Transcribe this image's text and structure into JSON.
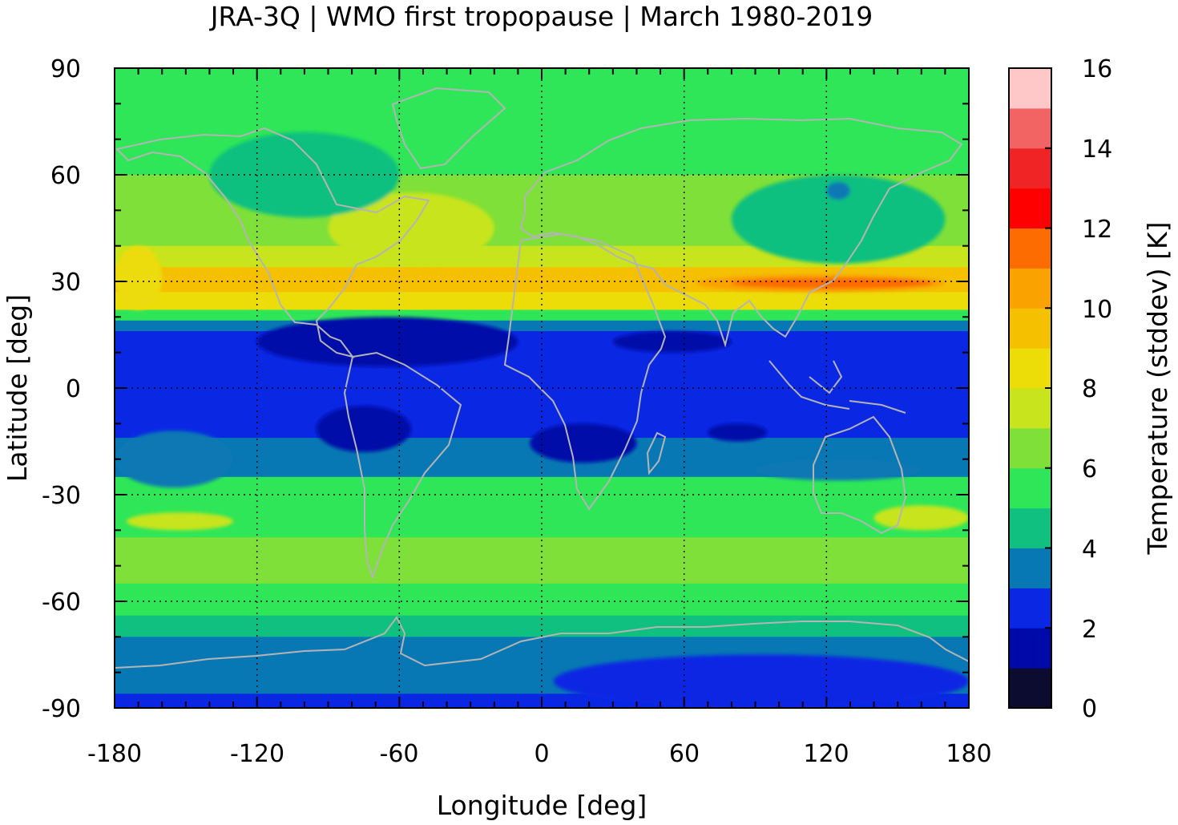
{
  "title": "JRA-3Q | WMO first tropopause | March 1980-2019",
  "xlabel": "Longitude [deg]",
  "ylabel": "Latitude [deg]",
  "x_ticks": [
    "-180",
    "-120",
    "-60",
    "0",
    "60",
    "120",
    "180"
  ],
  "y_ticks": [
    "90",
    "60",
    "30",
    "0",
    "-30",
    "-60",
    "-90"
  ],
  "colorbar": {
    "label": "Temperature (stddev) [K]",
    "ticks": [
      "16",
      "14",
      "12",
      "10",
      "8",
      "6",
      "4",
      "2",
      "0"
    ],
    "range": [
      0,
      16
    ],
    "levels": [
      {
        "from": 0,
        "to": 1,
        "color": "#0c0c30"
      },
      {
        "from": 1,
        "to": 2,
        "color": "#000aa8"
      },
      {
        "from": 2,
        "to": 3,
        "color": "#0a28e4"
      },
      {
        "from": 3,
        "to": 4,
        "color": "#0878b4"
      },
      {
        "from": 4,
        "to": 5,
        "color": "#10c080"
      },
      {
        "from": 5,
        "to": 6,
        "color": "#2ee658"
      },
      {
        "from": 6,
        "to": 7,
        "color": "#7ee038"
      },
      {
        "from": 7,
        "to": 8,
        "color": "#c8e41c"
      },
      {
        "from": 8,
        "to": 9,
        "color": "#ecdc08"
      },
      {
        "from": 9,
        "to": 10,
        "color": "#f4c000"
      },
      {
        "from": 10,
        "to": 11,
        "color": "#faa200"
      },
      {
        "from": 11,
        "to": 12,
        "color": "#fc6c00"
      },
      {
        "from": 12,
        "to": 13,
        "color": "#ff0000"
      },
      {
        "from": 13,
        "to": 14,
        "color": "#f02424"
      },
      {
        "from": 14,
        "to": 15,
        "color": "#f26464"
      },
      {
        "from": 15,
        "to": 16,
        "color": "#ffc8c8"
      }
    ]
  },
  "chart_data": {
    "type": "heatmap",
    "title": "JRA-3Q | WMO first tropopause | March 1980-2019",
    "xlabel": "Longitude [deg]",
    "ylabel": "Latitude [deg]",
    "xlim": [
      -180,
      180
    ],
    "ylim": [
      -90,
      90
    ],
    "grid": true,
    "colorbar_label": "Temperature (stddev) [K]",
    "zonal_bands": [
      {
        "lat_from": 90,
        "lat_to": 68,
        "value": 5.5
      },
      {
        "lat_from": 68,
        "lat_to": 60,
        "value": 5
      },
      {
        "lat_from": 60,
        "lat_to": 50,
        "value": 6
      },
      {
        "lat_from": 50,
        "lat_to": 40,
        "value": 6.5
      },
      {
        "lat_from": 40,
        "lat_to": 34,
        "value": 7.5
      },
      {
        "lat_from": 34,
        "lat_to": 27,
        "value": 9.5
      },
      {
        "lat_from": 27,
        "lat_to": 22,
        "value": 8
      },
      {
        "lat_from": 22,
        "lat_to": 19,
        "value": 5
      },
      {
        "lat_from": 19,
        "lat_to": 16,
        "value": 3.5
      },
      {
        "lat_from": 16,
        "lat_to": -14,
        "value": 2.5
      },
      {
        "lat_from": -14,
        "lat_to": -25,
        "value": 3.5
      },
      {
        "lat_from": -25,
        "lat_to": -30,
        "value": 5
      },
      {
        "lat_from": -30,
        "lat_to": -42,
        "value": 5.5
      },
      {
        "lat_from": -42,
        "lat_to": -55,
        "value": 6.5
      },
      {
        "lat_from": -55,
        "lat_to": -64,
        "value": 5.5
      },
      {
        "lat_from": -64,
        "lat_to": -70,
        "value": 4.5
      },
      {
        "lat_from": -70,
        "lat_to": -86,
        "value": 3.5
      },
      {
        "lat_from": -86,
        "lat_to": -90,
        "value": 2.5
      }
    ],
    "features": [
      {
        "lon": [
          -120,
          -10
        ],
        "lat": [
          20,
          6
        ],
        "value": 1.5
      },
      {
        "lon": [
          30,
          80
        ],
        "lat": [
          16,
          10
        ],
        "value": 1.5
      },
      {
        "lon": [
          -95,
          -55
        ],
        "lat": [
          -5,
          -18
        ],
        "value": 1.5
      },
      {
        "lon": [
          -5,
          40
        ],
        "lat": [
          -10,
          -21
        ],
        "value": 1.5
      },
      {
        "lon": [
          70,
          95
        ],
        "lat": [
          -10,
          -15
        ],
        "value": 1.5
      },
      {
        "lon": [
          -180,
          -130
        ],
        "lat": [
          -12,
          -28
        ],
        "value": 3.5
      },
      {
        "lon": [
          90,
          160
        ],
        "lat": [
          -20,
          -26
        ],
        "value": 3.5
      },
      {
        "lon": [
          65,
          170
        ],
        "lat": [
          32,
          27
        ],
        "value": 10.5
      },
      {
        "lon": [
          80,
          165
        ],
        "lat": [
          31,
          28
        ],
        "value": 11.5
      },
      {
        "lon": [
          -90,
          -20
        ],
        "lat": [
          55,
          35
        ],
        "value": 7.5
      },
      {
        "lon": [
          -180,
          -160
        ],
        "lat": [
          40,
          22
        ],
        "value": 8.5
      },
      {
        "lon": [
          80,
          170
        ],
        "lat": [
          60,
          35
        ],
        "value": 4.5
      },
      {
        "lon": [
          -140,
          -60
        ],
        "lat": [
          72,
          48
        ],
        "value": 4.5
      },
      {
        "lon": [
          120,
          130
        ],
        "lat": [
          58,
          53
        ],
        "value": 3.5
      },
      {
        "lon": [
          -175,
          -130
        ],
        "lat": [
          -35,
          -40
        ],
        "value": 7.5
      },
      {
        "lon": [
          140,
          180
        ],
        "lat": [
          -33,
          -40
        ],
        "value": 7.5
      },
      {
        "lon": [
          5,
          180
        ],
        "lat": [
          -75,
          -90
        ],
        "value": 2.5
      }
    ]
  }
}
